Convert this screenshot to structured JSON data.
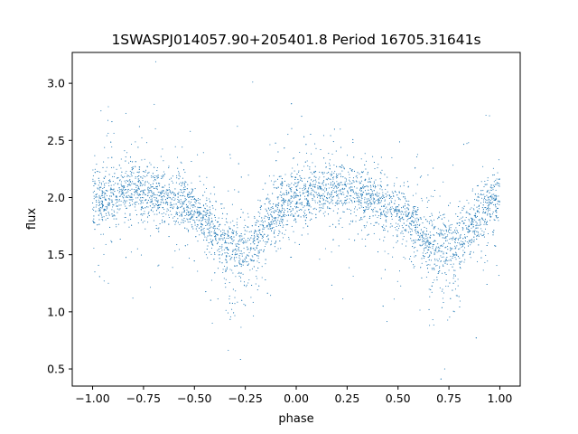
{
  "chart_data": {
    "type": "scatter",
    "title": "1SWASPJ014057.90+205401.8 Period 16705.31641s",
    "xlabel": "phase",
    "ylabel": "flux",
    "xlim": [
      -1.1,
      1.1
    ],
    "ylim": [
      0.35,
      3.27
    ],
    "xticks": [
      "−1.00",
      "−0.75",
      "−0.50",
      "−0.25",
      "0.00",
      "0.25",
      "0.50",
      "0.75",
      "1.00"
    ],
    "xtick_values": [
      -1.0,
      -0.75,
      -0.5,
      -0.25,
      0.0,
      0.25,
      0.5,
      0.75,
      1.0
    ],
    "yticks": [
      "0.5",
      "1.0",
      "1.5",
      "2.0",
      "2.5",
      "3.0"
    ],
    "ytick_values": [
      0.5,
      1.0,
      1.5,
      2.0,
      2.5,
      3.0
    ],
    "grid": false,
    "marker_color": "#1f77b4",
    "series": [
      {
        "x": [
          -1.0,
          -0.95,
          -0.9,
          -0.85,
          -0.8,
          -0.75,
          -0.7,
          -0.65,
          -0.6,
          -0.55,
          -0.5,
          -0.45,
          -0.4,
          -0.35,
          -0.3,
          -0.25,
          -0.2,
          -0.15,
          -0.1,
          -0.05,
          0.0,
          0.05,
          0.1,
          0.15,
          0.2,
          0.25,
          0.3,
          0.35,
          0.4,
          0.45,
          0.5,
          0.55,
          0.6,
          0.65,
          0.7,
          0.75,
          0.8,
          0.85,
          0.9,
          0.95,
          1.0
        ],
        "y": [
          2.0,
          1.98,
          2.0,
          2.05,
          2.07,
          2.05,
          2.03,
          2.0,
          1.96,
          1.93,
          1.88,
          1.82,
          1.7,
          1.6,
          1.56,
          1.57,
          1.64,
          1.74,
          1.85,
          1.95,
          2.0,
          2.03,
          2.05,
          2.06,
          2.06,
          2.05,
          2.03,
          2.0,
          1.96,
          1.93,
          1.88,
          1.8,
          1.7,
          1.6,
          1.56,
          1.57,
          1.64,
          1.74,
          1.85,
          1.95,
          2.0
        ]
      }
    ]
  }
}
